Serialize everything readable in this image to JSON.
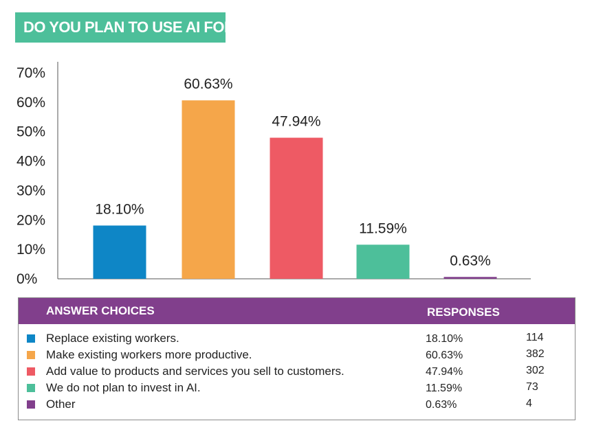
{
  "title": "DO YOU PLAN TO USE AI FOR:",
  "chart_data": {
    "type": "bar",
    "title": "DO YOU PLAN TO USE AI FOR:",
    "categories": [
      "Replace existing workers.",
      "Make existing workers more productive.",
      "Add value to products and services you sell to customers.",
      "We do not plan to invest in AI.",
      "Other"
    ],
    "values": [
      18.1,
      60.63,
      47.94,
      11.59,
      0.63
    ],
    "data_labels": [
      "18.10%",
      "60.63%",
      "47.94%",
      "11.59%",
      "0.63%"
    ],
    "colors": [
      "#0e86c6",
      "#f5a64a",
      "#ee5a64",
      "#4dbf9a",
      "#813f8c"
    ],
    "ylim": [
      0,
      70
    ],
    "y_ticks": [
      "0%",
      "10%",
      "20%",
      "30%",
      "40%",
      "50%",
      "60%",
      "70%"
    ],
    "y_tick_values": [
      0,
      10,
      20,
      30,
      40,
      50,
      60,
      70
    ],
    "xlabel": "",
    "ylabel": "",
    "grid": false
  },
  "table": {
    "header_choices": "ANSWER CHOICES",
    "header_responses": "RESPONSES",
    "header_color": "#813f8c",
    "rows": [
      {
        "choice": "Replace existing workers.",
        "percent": "18.10%",
        "count": "114",
        "color": "#0e86c6"
      },
      {
        "choice": "Make existing workers more productive.",
        "percent": "60.63%",
        "count": "382",
        "color": "#f5a64a"
      },
      {
        "choice": "Add value to products and services you sell to customers.",
        "percent": "47.94%",
        "count": "302",
        "color": "#ee5a64"
      },
      {
        "choice": "We do not plan to invest in AI.",
        "percent": "11.59%",
        "count": "73",
        "color": "#4dbf9a"
      },
      {
        "choice": "Other",
        "percent": "0.63%",
        "count": "4",
        "color": "#813f8c"
      }
    ]
  }
}
